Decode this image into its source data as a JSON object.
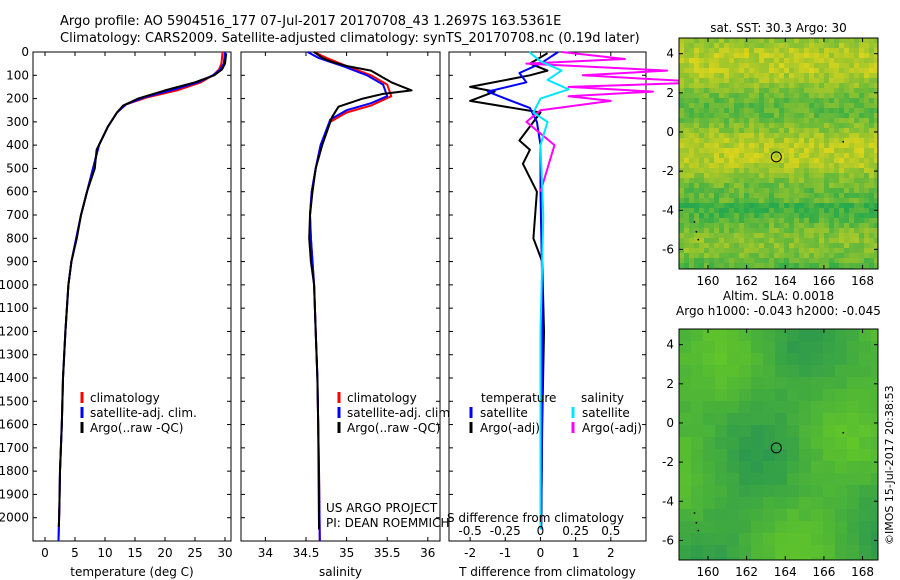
{
  "header": {
    "title_line1": "Argo profile: AO 5904516_177 07-Jul-2017 20170708_43 1.2697S 163.5361E",
    "title_line2": "Climatology: CARS2009. Satellite-adjusted climatology: synTS_20170708.nc (0.19d later)"
  },
  "colors": {
    "climatology": "#ff0000",
    "satellite": "#0000ff",
    "argo": "#000000",
    "sat_s": "#00e5ff",
    "argo_s": "#ff00ff"
  },
  "chart_data": [
    {
      "type": "line",
      "id": "temperature",
      "xlabel": "temperature (deg C)",
      "ylabel": "",
      "xlim": [
        -2,
        31
      ],
      "ylim": [
        2100,
        0
      ],
      "xticks": [
        0,
        5,
        10,
        15,
        20,
        25,
        30
      ],
      "yticks": [
        0,
        100,
        200,
        300,
        400,
        500,
        600,
        700,
        800,
        900,
        1000,
        1100,
        1200,
        1300,
        1400,
        1500,
        1600,
        1700,
        1800,
        1900,
        2000
      ],
      "legend": [
        "climatology",
        "satellite-adj. clim.",
        "Argo(..raw -QC)"
      ],
      "series": [
        {
          "name": "climatology",
          "color": "#ff0000",
          "x": [
            29.6,
            29.4,
            29.0,
            28.0,
            26.0,
            22.0,
            17.0,
            13.5,
            12.0,
            10.5,
            9.0,
            8.0,
            7.0,
            6.0,
            5.2,
            4.4,
            3.9,
            3.4,
            3.0,
            2.8,
            2.5,
            2.4,
            2.3,
            2.25
          ],
          "y": [
            0,
            50,
            75,
            100,
            130,
            165,
            195,
            225,
            260,
            320,
            400,
            500,
            600,
            700,
            800,
            900,
            1000,
            1200,
            1400,
            1600,
            1800,
            1950,
            2050,
            2100
          ]
        },
        {
          "name": "satellite-adj. clim.",
          "color": "#0000ff",
          "x": [
            30.0,
            29.8,
            29.2,
            28.0,
            25.5,
            21.0,
            16.5,
            13.5,
            12.0,
            10.5,
            9.0,
            8.0,
            7.0,
            6.0,
            5.2,
            4.4,
            3.9,
            3.4,
            3.0,
            2.8,
            2.5,
            2.4,
            2.3,
            2.25
          ],
          "y": [
            0,
            50,
            75,
            100,
            130,
            165,
            195,
            225,
            260,
            320,
            400,
            500,
            600,
            700,
            800,
            900,
            1000,
            1200,
            1400,
            1600,
            1800,
            1950,
            2050,
            2100
          ]
        },
        {
          "name": "Argo(..raw -QC)",
          "color": "#000000",
          "x": [
            30.2,
            30.0,
            29.5,
            28.2,
            25.0,
            20.0,
            15.5,
            13.0,
            12.0,
            10.5,
            8.6,
            8.3,
            7.0,
            6.0,
            5.3,
            4.4,
            3.9,
            3.4,
            3.0,
            2.8,
            2.5,
            2.4,
            2.3
          ],
          "y": [
            5,
            50,
            75,
            100,
            130,
            165,
            200,
            230,
            260,
            320,
            420,
            500,
            600,
            700,
            800,
            900,
            1000,
            1200,
            1400,
            1600,
            1800,
            1950,
            2040
          ]
        }
      ]
    },
    {
      "type": "line",
      "id": "salinity",
      "xlabel": "salinity",
      "xlim": [
        33.7,
        36.15
      ],
      "ylim": [
        2100,
        0
      ],
      "xticks": [
        34,
        34.5,
        35,
        35.5,
        36
      ],
      "legend": [
        "climatology",
        "satellite-adj. clim.",
        "Argo(..raw -QC)"
      ],
      "series": [
        {
          "name": "climatology",
          "color": "#ff0000",
          "x": [
            34.6,
            34.75,
            35.0,
            35.3,
            35.5,
            35.55,
            35.3,
            35.0,
            34.8,
            34.68,
            34.62,
            34.57,
            34.55,
            34.56,
            34.58,
            34.6,
            34.62,
            34.64,
            34.65,
            34.66,
            34.67
          ],
          "y": [
            0,
            25,
            60,
            100,
            140,
            190,
            230,
            260,
            300,
            400,
            500,
            600,
            700,
            800,
            900,
            1000,
            1200,
            1400,
            1600,
            1800,
            2100
          ]
        },
        {
          "name": "satellite-adj. clim.",
          "color": "#0000ff",
          "x": [
            34.52,
            34.65,
            34.95,
            35.25,
            35.45,
            35.5,
            35.3,
            35.0,
            34.8,
            34.68,
            34.62,
            34.57,
            34.55,
            34.56,
            34.58,
            34.6,
            34.62,
            34.64,
            34.65,
            34.66,
            34.67
          ],
          "y": [
            0,
            25,
            60,
            100,
            140,
            190,
            220,
            250,
            290,
            400,
            500,
            600,
            700,
            800,
            900,
            1000,
            1200,
            1400,
            1600,
            1800,
            2100
          ]
        },
        {
          "name": "Argo(..raw -QC)",
          "color": "#000000",
          "x": [
            34.6,
            34.7,
            34.8,
            35.0,
            35.3,
            35.45,
            35.5,
            35.55,
            35.8,
            35.45,
            35.2,
            34.9,
            34.82,
            34.7,
            34.62,
            34.58,
            34.55,
            34.54,
            34.56,
            34.6,
            34.62,
            34.64,
            34.65,
            34.66
          ],
          "y": [
            0,
            25,
            40,
            60,
            80,
            110,
            120,
            130,
            165,
            180,
            200,
            235,
            280,
            400,
            500,
            600,
            700,
            800,
            900,
            1000,
            1200,
            1400,
            1600,
            2050
          ]
        }
      ]
    },
    {
      "type": "line",
      "id": "differences",
      "xlabel": "T difference from climatology",
      "xlabel_top": "S difference from climatology",
      "xlim": [
        -2.6,
        3.0
      ],
      "xlim_salinity": [
        -0.65,
        0.75
      ],
      "ylim": [
        2100,
        0
      ],
      "xticks": [
        -2,
        -1,
        0,
        1,
        2
      ],
      "xticks_salinity": [
        -0.5,
        -0.25,
        0,
        0.25,
        0.5
      ],
      "xticklabels_salinity": [
        "-0.5",
        "-0.25",
        "0",
        "0.25",
        "0.5"
      ],
      "legend_title_temperature": "temperature",
      "legend_title_salinity": "salinity",
      "legend_temperature": [
        "satellite",
        "Argo(-adj)"
      ],
      "legend_salinity": [
        "satellite",
        "Argo(-adj)"
      ],
      "series": [
        {
          "name": "temperature satellite",
          "color": "#0000ff",
          "x": [
            0.5,
            0.0,
            -0.6,
            -0.4,
            -1.5,
            -1.0,
            -0.3,
            -0.1,
            0.0,
            0.0,
            0.05,
            0.05,
            0.02
          ],
          "y": [
            0,
            50,
            90,
            130,
            170,
            200,
            240,
            300,
            400,
            600,
            1000,
            1500,
            2050
          ]
        },
        {
          "name": "temperature Argo(-adj)",
          "color": "#000000",
          "x": [
            0.2,
            -0.3,
            0.2,
            -0.3,
            -2.0,
            -1.3,
            -2.0,
            0.0,
            -0.2,
            -0.6,
            -0.3,
            -0.5,
            -0.1,
            -0.2,
            0.05,
            0.1,
            0.05,
            0.02
          ],
          "y": [
            5,
            50,
            80,
            100,
            150,
            170,
            210,
            260,
            300,
            380,
            420,
            480,
            600,
            800,
            900,
            1200,
            1600,
            2040
          ]
        },
        {
          "name": "salinity satellite",
          "color": "#00e5ff",
          "x": [
            -0.08,
            0.0,
            0.15,
            0.05,
            0.2,
            0.0,
            -0.05,
            0.05,
            0.0,
            0.02,
            0.0,
            0.0
          ],
          "y": [
            0,
            40,
            80,
            120,
            160,
            200,
            260,
            300,
            400,
            700,
            1200,
            2050
          ]
        },
        {
          "name": "salinity Argo(-adj)",
          "color": "#ff00ff",
          "x": [
            0.15,
            0.6,
            -0.1,
            0.9,
            0.3,
            1.2,
            0.2,
            0.8,
            0.2,
            0.5,
            0.0,
            -0.1,
            0.1,
            0.0
          ],
          "y": [
            0,
            30,
            50,
            80,
            100,
            130,
            150,
            170,
            190,
            210,
            250,
            300,
            400,
            600
          ]
        }
      ],
      "annotation_line1": "US ARGO PROJECT",
      "annotation_line2": "PI: DEAN ROEMMICH"
    },
    {
      "type": "heatmap",
      "id": "sst_map",
      "title": "sat. SST: 30.3  Argo: 30",
      "xlim": [
        158.5,
        168.8
      ],
      "ylim": [
        -7.0,
        4.8
      ],
      "xticks": [
        160,
        162,
        164,
        166,
        168
      ],
      "yticks": [
        4,
        2,
        0,
        -2,
        -4,
        -6
      ],
      "argo_position": {
        "lon": 163.5361,
        "lat": -1.2697
      }
    },
    {
      "type": "heatmap",
      "id": "sla_map",
      "title": "Altim. SLA: 0.0018",
      "subtitle": "Argo h1000: -0.043 h2000: -0.045",
      "xlim": [
        158.5,
        168.8
      ],
      "ylim": [
        -7.0,
        4.8
      ],
      "xticks": [
        160,
        162,
        164,
        166,
        168
      ],
      "yticks": [
        4,
        2,
        0,
        -2,
        -4,
        -6
      ],
      "argo_position": {
        "lon": 163.5361,
        "lat": -1.2697
      }
    }
  ],
  "footer": {
    "stamp": "©IMOS 15-Jul-2017 20:38:53"
  }
}
